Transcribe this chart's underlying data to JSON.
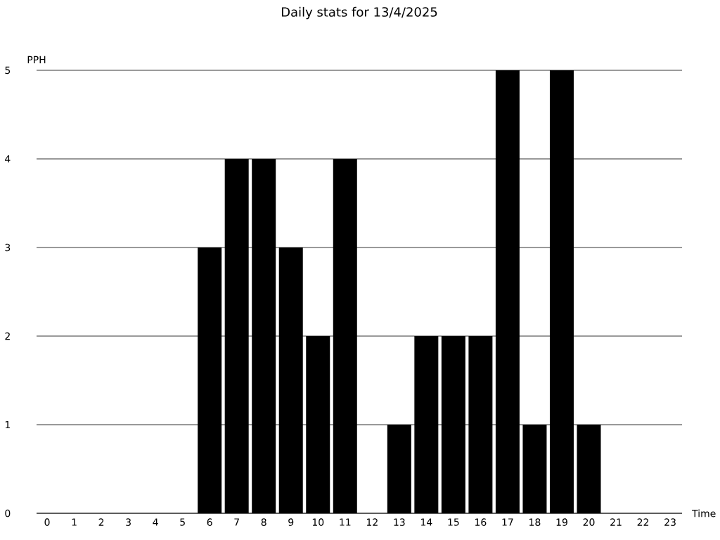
{
  "chart_data": {
    "type": "bar",
    "title": "Daily stats for 13/4/2025",
    "xlabel": "Time",
    "ylabel": "PPH",
    "categories": [
      "0",
      "1",
      "2",
      "3",
      "4",
      "5",
      "6",
      "7",
      "8",
      "9",
      "10",
      "11",
      "12",
      "13",
      "14",
      "15",
      "16",
      "17",
      "18",
      "19",
      "20",
      "21",
      "22",
      "23"
    ],
    "values": [
      0,
      0,
      0,
      0,
      0,
      0,
      3,
      4,
      4,
      3,
      2,
      4,
      0,
      1,
      2,
      2,
      2,
      5,
      1,
      5,
      1,
      0,
      0,
      0
    ],
    "color": "#000000",
    "ylim": [
      0,
      5
    ],
    "yticks": [
      0,
      1,
      2,
      3,
      4,
      5
    ],
    "grid": "y"
  }
}
